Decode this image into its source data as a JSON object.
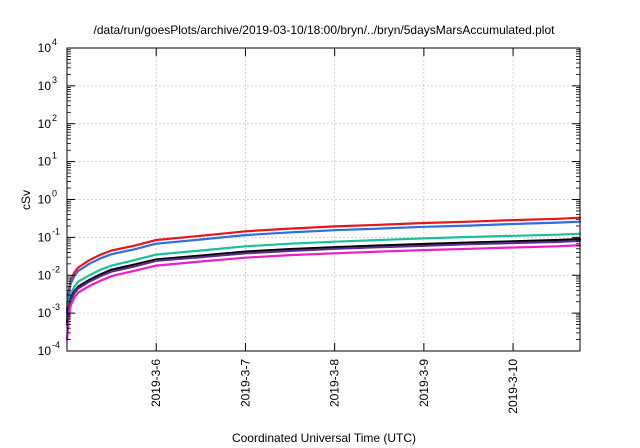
{
  "chart_data": {
    "type": "line",
    "title": "/data/run/goesPlots/archive/2019-03-10/18:00/bryn/../bryn/5daysMarsAccumulated.plot",
    "xlabel": "Coordinated Universal Time (UTC)",
    "ylabel": "cSv",
    "yscale": "log",
    "ylim": [
      0.0001,
      10000
    ],
    "xlim": [
      "2019-03-05 00:00",
      "2019-03-10 18:00"
    ],
    "grid": true,
    "y_ticks": [
      {
        "base": "10",
        "exp": "-4",
        "value": 0.0001
      },
      {
        "base": "10",
        "exp": "-3",
        "value": 0.001
      },
      {
        "base": "10",
        "exp": "-2",
        "value": 0.01
      },
      {
        "base": "10",
        "exp": "-1",
        "value": 0.1
      },
      {
        "base": "10",
        "exp": "0",
        "value": 1
      },
      {
        "base": "10",
        "exp": "1",
        "value": 10
      },
      {
        "base": "10",
        "exp": "2",
        "value": 100
      },
      {
        "base": "10",
        "exp": "3",
        "value": 1000
      },
      {
        "base": "10",
        "exp": "4",
        "value": 10000
      }
    ],
    "x_ticks": [
      {
        "label": "2019-3-6",
        "value": "2019-03-06 00:00"
      },
      {
        "label": "2019-3-7",
        "value": "2019-03-07 00:00"
      },
      {
        "label": "2019-3-8",
        "value": "2019-03-08 00:00"
      },
      {
        "label": "2019-3-9",
        "value": "2019-03-09 00:00"
      },
      {
        "label": "2019-3-10",
        "value": "2019-03-10 00:00"
      }
    ],
    "x": [
      "2019-03-05 00:00",
      "2019-03-05 00:30",
      "2019-03-05 01:00",
      "2019-03-05 02:00",
      "2019-03-05 03:00",
      "2019-03-05 06:00",
      "2019-03-05 09:00",
      "2019-03-05 12:00",
      "2019-03-05 18:00",
      "2019-03-06 00:00",
      "2019-03-06 12:00",
      "2019-03-07 00:00",
      "2019-03-07 12:00",
      "2019-03-08 00:00",
      "2019-03-08 12:00",
      "2019-03-09 00:00",
      "2019-03-09 12:00",
      "2019-03-10 00:00",
      "2019-03-10 12:00",
      "2019-03-10 18:00"
    ],
    "series": [
      {
        "color": "#e8151b",
        "values": [
          0.0012,
          0.004,
          0.0075,
          0.012,
          0.016,
          0.025,
          0.035,
          0.045,
          0.06,
          0.085,
          0.11,
          0.145,
          0.17,
          0.195,
          0.215,
          0.24,
          0.26,
          0.285,
          0.31,
          0.33
        ]
      },
      {
        "color": "#2f6ee0",
        "values": [
          0.001,
          0.0032,
          0.006,
          0.0095,
          0.013,
          0.02,
          0.028,
          0.036,
          0.048,
          0.068,
          0.088,
          0.115,
          0.135,
          0.155,
          0.17,
          0.19,
          0.205,
          0.225,
          0.245,
          0.26
        ]
      },
      {
        "color": "#1bbf9a",
        "values": [
          0.0008,
          0.0018,
          0.0032,
          0.005,
          0.0068,
          0.01,
          0.014,
          0.018,
          0.025,
          0.035,
          0.045,
          0.058,
          0.068,
          0.077,
          0.085,
          0.094,
          0.102,
          0.11,
          0.118,
          0.125
        ]
      },
      {
        "color": "#000000",
        "values": [
          0.0006,
          0.0014,
          0.0025,
          0.0038,
          0.005,
          0.0075,
          0.0105,
          0.014,
          0.019,
          0.026,
          0.033,
          0.042,
          0.049,
          0.055,
          0.061,
          0.067,
          0.073,
          0.079,
          0.085,
          0.09
        ]
      },
      {
        "color": "#5a2d8c",
        "values": [
          0.0005,
          0.0012,
          0.0022,
          0.0034,
          0.0045,
          0.0068,
          0.0095,
          0.0125,
          0.017,
          0.024,
          0.03,
          0.038,
          0.044,
          0.05,
          0.055,
          0.06,
          0.066,
          0.071,
          0.076,
          0.081
        ]
      },
      {
        "color": "#e820c8",
        "values": [
          0.0002,
          0.0008,
          0.0016,
          0.0026,
          0.0035,
          0.0052,
          0.0072,
          0.0095,
          0.013,
          0.018,
          0.023,
          0.029,
          0.034,
          0.038,
          0.042,
          0.046,
          0.05,
          0.054,
          0.058,
          0.062
        ]
      }
    ]
  }
}
